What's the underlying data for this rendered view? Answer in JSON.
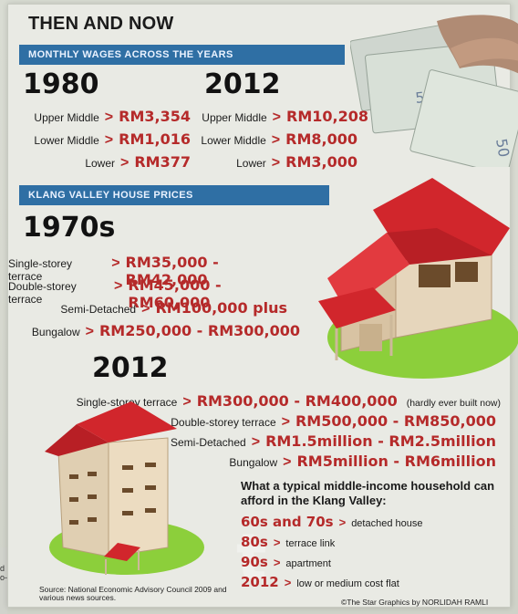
{
  "title": "THEN AND NOW",
  "wages": {
    "bar_label": "MONTHLY WAGES ACROSS THE YEARS",
    "y1980": {
      "year": "1980",
      "rows": [
        {
          "label": "Upper Middle",
          "value": "RM3,354"
        },
        {
          "label": "Lower Middle",
          "value": "RM1,016"
        },
        {
          "label": "Lower",
          "value": "RM377"
        }
      ]
    },
    "y2012": {
      "year": "2012",
      "rows": [
        {
          "label": "Upper Middle",
          "value": "RM10,208"
        },
        {
          "label": "Lower Middle",
          "value": "RM8,000"
        },
        {
          "label": "Lower",
          "value": "RM3,000"
        }
      ]
    }
  },
  "house_prices": {
    "bar_label": "KLANG VALLEY HOUSE PRICES",
    "y1970s": {
      "year": "1970s",
      "rows": [
        {
          "label": "Single-storey terrace",
          "value": "RM35,000 - RM42,000"
        },
        {
          "label": "Double-storey terrace",
          "value": "RM45,000 - RM60,000"
        },
        {
          "label": "Semi-Detached",
          "value": "RM100,000 plus"
        },
        {
          "label": "Bungalow",
          "value": "RM250,000 - RM300,000"
        }
      ]
    },
    "y2012": {
      "year": "2012",
      "rows": [
        {
          "label": "Single-storey terrace",
          "value": "RM300,000 - RM400,000",
          "note": "(hardly ever built now)"
        },
        {
          "label": "Double-storey terrace",
          "value": "RM500,000 - RM850,000"
        },
        {
          "label": "Semi-Detached",
          "value": "RM1.5million - RM2.5million"
        },
        {
          "label": "Bungalow",
          "value": "RM5million - RM6million"
        }
      ]
    }
  },
  "afford": {
    "heading": "What a typical middle-income household can afford in the Klang Valley:",
    "rows": [
      {
        "era": "60s and 70s",
        "type": "detached house"
      },
      {
        "era": "80s",
        "type": "terrace link"
      },
      {
        "era": "90s",
        "type": "apartment"
      },
      {
        "era": "2012",
        "type": "low or medium cost flat"
      }
    ]
  },
  "source": "Source: National Economic Advisory Council 2009 and various news sources.",
  "credit": "©The Star Graphics by NORLIDAH RAMLI",
  "edge_text": "d\no-",
  "colors": {
    "bar": "#2f6fa4",
    "accent": "#b52a2a",
    "roof": "#d1262c",
    "grass": "#8ccf3b"
  },
  "icons": [
    "banknotes-image",
    "house-illustration",
    "apartment-building-illustration"
  ]
}
